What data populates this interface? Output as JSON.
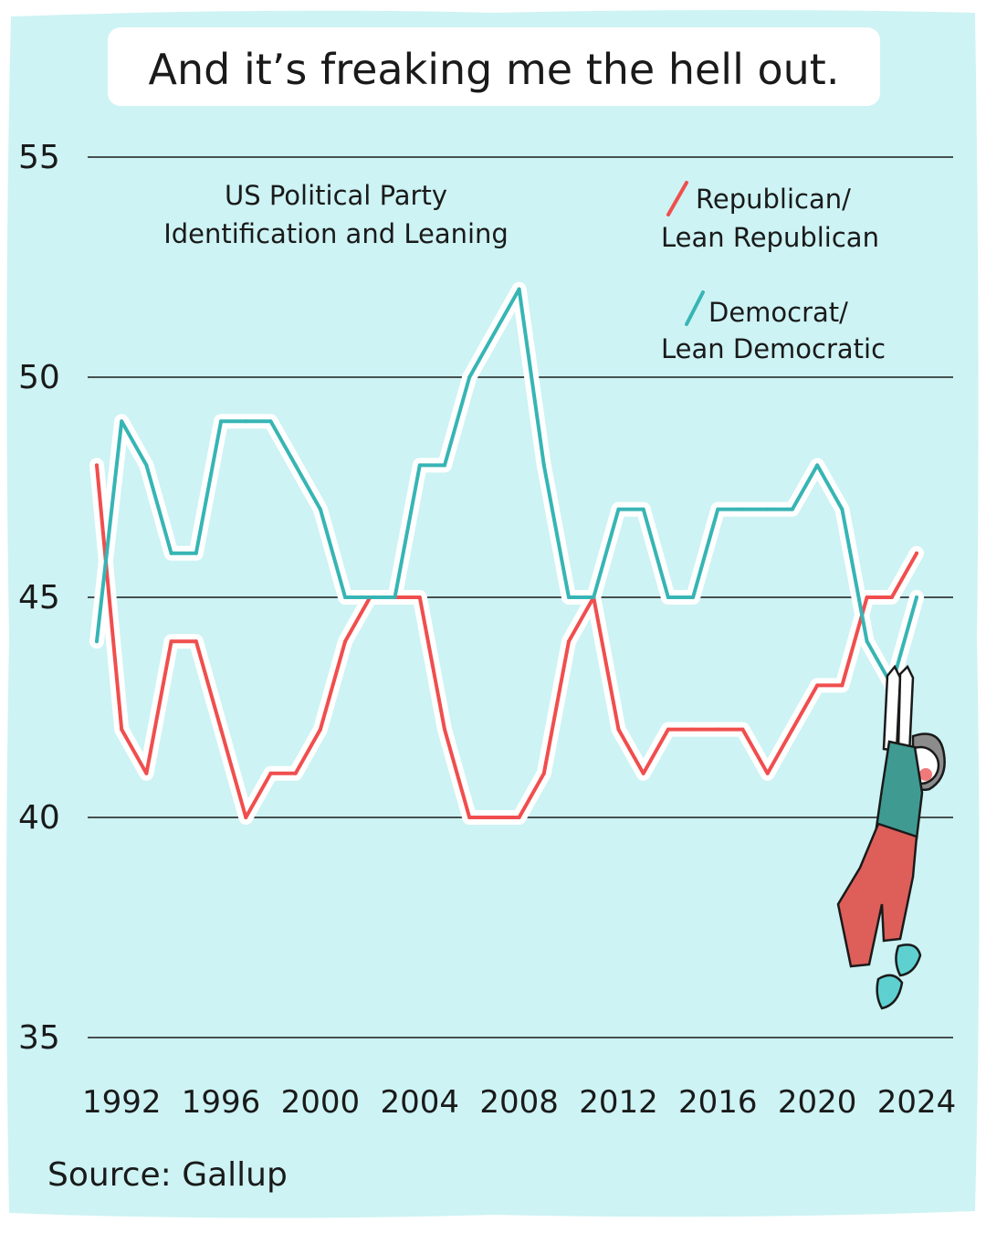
{
  "headline": "And it’s freaking me the hell out.",
  "source": "Source: Gallup",
  "colors": {
    "background": "#cdf3f4",
    "republican": "#f04e4e",
    "democrat": "#37b5b5",
    "gridline": "#1a1a1a",
    "halo": "#ffffff",
    "shirt": "#3f9a92",
    "pants": "#de5e5a",
    "shoes": "#5fd0d0",
    "hair": "#8c8c8c",
    "skin": "#ffffff"
  },
  "chart_data": {
    "type": "line",
    "title": "US Political Party Identification and Leaning",
    "title_lines": [
      "US Political Party",
      "Identification and Leaning"
    ],
    "xlabel": "",
    "ylabel": "",
    "xlim": [
      1991,
      2024
    ],
    "ylim": [
      35,
      55
    ],
    "yticks": [
      55,
      50,
      45,
      40,
      35
    ],
    "xticks": [
      "1992",
      "1996",
      "2000",
      "2004",
      "2008",
      "2012",
      "2016",
      "2020",
      "2024"
    ],
    "grid": true,
    "legend_position": "top-right",
    "x": [
      1991,
      1992,
      1993,
      1994,
      1995,
      1996,
      1997,
      1998,
      1999,
      2000,
      2001,
      2002,
      2003,
      2004,
      2005,
      2006,
      2007,
      2008,
      2009,
      2010,
      2011,
      2012,
      2013,
      2014,
      2015,
      2016,
      2017,
      2018,
      2019,
      2020,
      2021,
      2022,
      2023,
      2024
    ],
    "series": [
      {
        "name": "Republican/ Lean Republican",
        "legend_lines": [
          "Republican/",
          "Lean Republican"
        ],
        "color": "#f04e4e",
        "values": [
          48,
          42,
          41,
          44,
          44,
          42,
          40,
          41,
          41,
          42,
          44,
          45,
          45,
          45,
          42,
          40,
          40,
          40,
          41,
          44,
          45,
          42,
          41,
          42,
          42,
          42,
          42,
          41,
          42,
          43,
          43,
          45,
          45,
          46
        ]
      },
      {
        "name": "Democrat/ Lean Democratic",
        "legend_lines": [
          "Democrat/",
          "Lean Democratic"
        ],
        "color": "#37b5b5",
        "values": [
          44,
          49,
          48,
          46,
          46,
          49,
          49,
          49,
          48,
          47,
          45,
          45,
          45,
          48,
          48,
          50,
          51,
          52,
          48,
          45,
          45,
          47,
          47,
          45,
          45,
          47,
          47,
          47,
          47,
          48,
          47,
          44,
          43,
          45
        ]
      }
    ]
  }
}
